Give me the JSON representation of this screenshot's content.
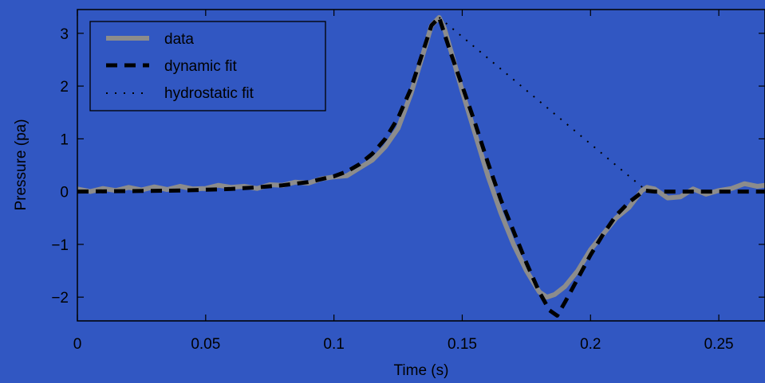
{
  "colors": {
    "background": "#3157c2",
    "data_line": "#8c8c8c",
    "fit_line": "#000000",
    "axes": "#000000"
  },
  "chart_data": {
    "type": "line",
    "title": "",
    "xlabel": "Time (s)",
    "ylabel": "Pressure (pa)",
    "xlim": [
      0,
      0.268
    ],
    "ylim": [
      -2.45,
      3.45
    ],
    "xticks": [
      0,
      0.05,
      0.1,
      0.15,
      0.2,
      0.25
    ],
    "xtick_labels": [
      "0",
      "0.05",
      "0.1",
      "0.15",
      "0.2",
      "0.25"
    ],
    "yticks": [
      -2,
      -1,
      0,
      1,
      2,
      3
    ],
    "ytick_labels": [
      "−2",
      "−1",
      "0",
      "1",
      "2",
      "3"
    ],
    "grid": false,
    "legend_position": "top-left",
    "series": [
      {
        "name": "data",
        "style": "solid-thick-gray",
        "x": [
          0,
          0.005,
          0.01,
          0.015,
          0.02,
          0.025,
          0.03,
          0.035,
          0.04,
          0.045,
          0.05,
          0.055,
          0.06,
          0.065,
          0.07,
          0.075,
          0.08,
          0.085,
          0.09,
          0.095,
          0.1,
          0.105,
          0.11,
          0.115,
          0.12,
          0.125,
          0.13,
          0.135,
          0.138,
          0.141,
          0.143,
          0.146,
          0.15,
          0.155,
          0.16,
          0.165,
          0.17,
          0.175,
          0.18,
          0.183,
          0.186,
          0.19,
          0.195,
          0.2,
          0.205,
          0.21,
          0.215,
          0.22,
          0.222,
          0.225,
          0.23,
          0.235,
          0.24,
          0.245,
          0.25,
          0.255,
          0.26,
          0.265,
          0.268
        ],
        "y": [
          0.05,
          0.0,
          0.06,
          0.02,
          0.08,
          0.03,
          0.09,
          0.04,
          0.1,
          0.05,
          0.06,
          0.12,
          0.08,
          0.1,
          0.06,
          0.13,
          0.12,
          0.18,
          0.16,
          0.24,
          0.28,
          0.3,
          0.45,
          0.6,
          0.85,
          1.2,
          1.85,
          2.65,
          3.15,
          3.3,
          3.1,
          2.6,
          1.9,
          1.1,
          0.3,
          -0.4,
          -1.0,
          -1.5,
          -1.9,
          -2.0,
          -1.95,
          -1.8,
          -1.5,
          -1.1,
          -0.8,
          -0.5,
          -0.3,
          0.02,
          0.08,
          0.05,
          -0.12,
          -0.1,
          0.05,
          -0.05,
          0.02,
          0.06,
          0.15,
          0.1,
          0.12
        ]
      },
      {
        "name": "dynamic fit",
        "style": "dashed-thick-black",
        "x": [
          0,
          0.02,
          0.04,
          0.06,
          0.07,
          0.08,
          0.09,
          0.1,
          0.105,
          0.11,
          0.115,
          0.12,
          0.125,
          0.13,
          0.135,
          0.138,
          0.141,
          0.145,
          0.15,
          0.155,
          0.16,
          0.165,
          0.17,
          0.175,
          0.18,
          0.184,
          0.187,
          0.19,
          0.195,
          0.2,
          0.205,
          0.21,
          0.215,
          0.221,
          0.225,
          0.268
        ],
        "y": [
          0.0,
          0.01,
          0.02,
          0.05,
          0.08,
          0.12,
          0.18,
          0.29,
          0.38,
          0.52,
          0.72,
          1.0,
          1.4,
          1.95,
          2.7,
          3.15,
          3.3,
          2.7,
          2.0,
          1.3,
          0.55,
          -0.15,
          -0.75,
          -1.35,
          -1.9,
          -2.25,
          -2.35,
          -2.1,
          -1.65,
          -1.2,
          -0.8,
          -0.45,
          -0.2,
          0.02,
          0.0,
          0.0
        ]
      },
      {
        "name": "hydrostatic fit",
        "style": "dotted-black",
        "x": [
          0.141,
          0.221
        ],
        "y": [
          3.3,
          0.05
        ]
      }
    ]
  }
}
